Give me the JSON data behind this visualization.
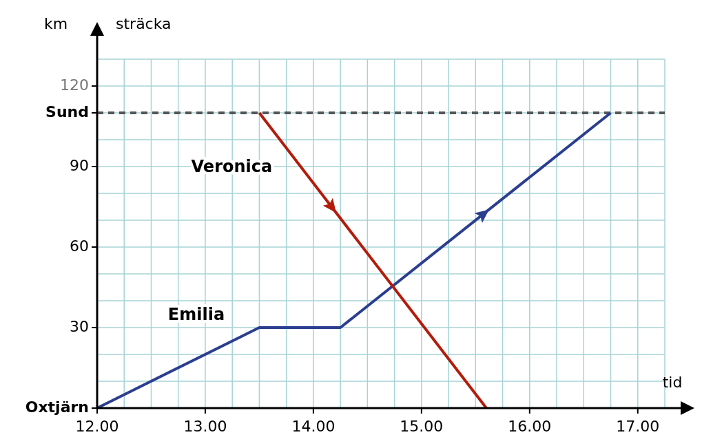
{
  "chart_data": {
    "type": "line",
    "ylabel": "km",
    "xlabel": "tid",
    "annotations": [
      "sträcka"
    ],
    "xlim": [
      12,
      17.25
    ],
    "ylim": [
      0,
      130
    ],
    "xticks": [
      {
        "value": 12,
        "label": "12.00"
      },
      {
        "value": 13,
        "label": "13.00"
      },
      {
        "value": 14,
        "label": "14.00"
      },
      {
        "value": 15,
        "label": "15.00"
      },
      {
        "value": 16,
        "label": "16.00"
      },
      {
        "value": 17,
        "label": "17.00"
      }
    ],
    "yticks": [
      {
        "value": 0,
        "label": "Oxtjärn"
      },
      30,
      60,
      90,
      {
        "value": 110,
        "label": "Sund"
      },
      120
    ],
    "grid": true,
    "marker": "none",
    "line_style": "solid",
    "ref_lines": [
      {
        "axis": "y",
        "value": 110,
        "color": "#555555",
        "line_style": "dashed"
      }
    ],
    "series": [
      {
        "name": "Emilia",
        "color": "#2b3e8f",
        "x": [
          12,
          13.5,
          14.25,
          16.75
        ],
        "values": [
          0,
          30,
          30,
          110
        ]
      },
      {
        "name": "Veronica",
        "color": "#b31b0b",
        "x": [
          13.5,
          15.6
        ],
        "values": [
          110,
          0
        ]
      }
    ]
  }
}
